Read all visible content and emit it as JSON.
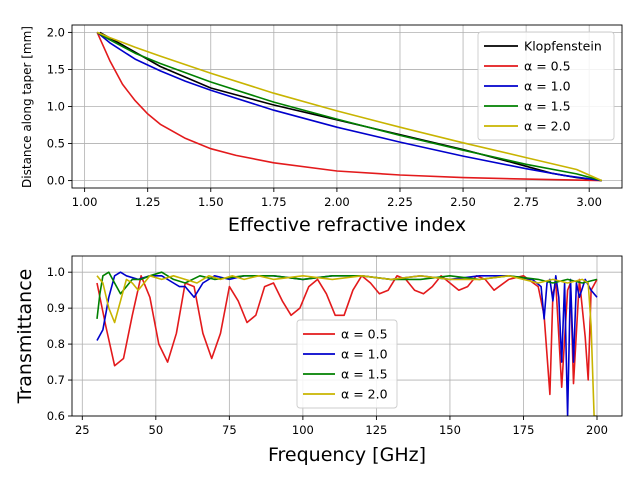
{
  "chart_data": [
    {
      "type": "line",
      "title": "",
      "xlabel": "Effective refractive index",
      "ylabel": "Distance along taper [mm]",
      "xlim": [
        0.95,
        3.13
      ],
      "ylim": [
        -0.1,
        2.1
      ],
      "xticks": [
        "1.00",
        "1.25",
        "1.50",
        "1.75",
        "2.00",
        "2.25",
        "2.50",
        "2.75",
        "3.00"
      ],
      "xtick_values": [
        1.0,
        1.25,
        1.5,
        1.75,
        2.0,
        2.25,
        2.5,
        2.75,
        3.0
      ],
      "yticks": [
        "0.0",
        "0.5",
        "1.0",
        "1.5",
        "2.0"
      ],
      "ytick_values": [
        0.0,
        0.5,
        1.0,
        1.5,
        2.0
      ],
      "grid": true,
      "legend_position": "top-right",
      "series": [
        {
          "name": "Klopfenstein",
          "color": "#000000",
          "x": [
            1.06,
            1.15,
            1.3,
            1.5,
            1.75,
            2.0,
            2.25,
            2.5,
            2.7,
            2.85,
            2.95,
            3.05
          ],
          "y": [
            2.0,
            1.83,
            1.54,
            1.25,
            1.02,
            0.82,
            0.62,
            0.42,
            0.24,
            0.1,
            0.04,
            0.0
          ]
        },
        {
          "name": "α = 0.5",
          "color": "#e31a1c",
          "x": [
            1.05,
            1.1,
            1.15,
            1.2,
            1.25,
            1.3,
            1.4,
            1.5,
            1.6,
            1.75,
            2.0,
            2.25,
            2.5,
            2.75,
            3.05
          ],
          "y": [
            2.0,
            1.62,
            1.3,
            1.08,
            0.9,
            0.76,
            0.57,
            0.43,
            0.34,
            0.24,
            0.13,
            0.075,
            0.04,
            0.02,
            0.0
          ]
        },
        {
          "name": "α = 1.0",
          "color": "#0000cc",
          "x": [
            1.05,
            1.1,
            1.2,
            1.3,
            1.4,
            1.5,
            1.75,
            2.0,
            2.25,
            2.5,
            2.75,
            2.9,
            3.05
          ],
          "y": [
            2.0,
            1.86,
            1.64,
            1.48,
            1.34,
            1.22,
            0.95,
            0.72,
            0.52,
            0.33,
            0.16,
            0.07,
            0.0
          ]
        },
        {
          "name": "α = 1.5",
          "color": "#008000",
          "x": [
            1.05,
            1.1,
            1.2,
            1.3,
            1.5,
            1.75,
            2.0,
            2.25,
            2.5,
            2.75,
            2.95,
            3.05
          ],
          "y": [
            2.0,
            1.9,
            1.72,
            1.58,
            1.33,
            1.06,
            0.83,
            0.61,
            0.41,
            0.22,
            0.09,
            0.0
          ]
        },
        {
          "name": "α = 2.0",
          "color": "#c8b400",
          "x": [
            1.05,
            1.1,
            1.2,
            1.3,
            1.5,
            1.75,
            2.0,
            2.25,
            2.5,
            2.75,
            2.95,
            3.05
          ],
          "y": [
            2.0,
            1.93,
            1.8,
            1.68,
            1.45,
            1.18,
            0.94,
            0.72,
            0.51,
            0.31,
            0.15,
            0.0
          ]
        }
      ]
    },
    {
      "type": "line",
      "title": "",
      "xlabel": "Frequency [GHz]",
      "ylabel": "Transmittance",
      "xlim": [
        21.5,
        208.5
      ],
      "ylim": [
        0.6,
        1.045
      ],
      "xticks": [
        "25",
        "50",
        "75",
        "100",
        "125",
        "150",
        "175",
        "200"
      ],
      "xtick_values": [
        25,
        50,
        75,
        100,
        125,
        150,
        175,
        200
      ],
      "yticks": [
        "0.6",
        "0.7",
        "0.8",
        "0.9",
        "1.0"
      ],
      "ytick_values": [
        0.6,
        0.7,
        0.8,
        0.9,
        1.0
      ],
      "grid": true,
      "legend_position": "lower-center",
      "series": [
        {
          "name": "α = 0.5",
          "color": "#e31a1c",
          "x": [
            30,
            33,
            36,
            39,
            42,
            45,
            48,
            51,
            54,
            57,
            60,
            63,
            66,
            69,
            72,
            75,
            78,
            81,
            84,
            87,
            90,
            93,
            96,
            99,
            102,
            105,
            108,
            111,
            114,
            117,
            120,
            123,
            126,
            129,
            132,
            135,
            138,
            141,
            144,
            147,
            150,
            153,
            156,
            159,
            162,
            165,
            170,
            175,
            180,
            182,
            184,
            185,
            186,
            188,
            190,
            191,
            192,
            194,
            196,
            197,
            198,
            200
          ],
          "y": [
            0.97,
            0.85,
            0.74,
            0.76,
            0.88,
            0.99,
            0.93,
            0.8,
            0.75,
            0.83,
            0.97,
            0.96,
            0.83,
            0.76,
            0.83,
            0.96,
            0.92,
            0.86,
            0.88,
            0.96,
            0.97,
            0.92,
            0.88,
            0.9,
            0.96,
            0.98,
            0.94,
            0.88,
            0.88,
            0.95,
            0.99,
            0.97,
            0.94,
            0.95,
            0.99,
            0.98,
            0.95,
            0.94,
            0.96,
            0.99,
            0.97,
            0.95,
            0.96,
            0.99,
            0.98,
            0.95,
            0.98,
            0.99,
            0.96,
            0.88,
            0.66,
            0.94,
            0.97,
            0.68,
            0.95,
            0.97,
            0.69,
            0.98,
            0.82,
            0.7,
            0.95,
            0.98
          ]
        },
        {
          "name": "α = 1.0",
          "color": "#0000cc",
          "x": [
            30,
            32,
            34,
            36,
            38,
            40,
            44,
            48,
            52,
            56,
            58,
            60,
            63,
            66,
            70,
            75,
            80,
            90,
            100,
            110,
            120,
            130,
            140,
            150,
            160,
            170,
            178,
            181,
            182,
            183,
            184,
            185,
            186,
            187,
            188,
            189,
            190,
            191,
            192,
            193,
            194,
            196,
            198,
            200
          ],
          "y": [
            0.81,
            0.84,
            0.93,
            0.99,
            1.0,
            0.99,
            0.98,
            0.99,
            0.99,
            0.97,
            0.96,
            0.96,
            0.93,
            0.97,
            0.99,
            0.98,
            0.99,
            0.99,
            0.98,
            0.99,
            0.99,
            0.98,
            0.99,
            0.98,
            0.99,
            0.99,
            0.98,
            0.96,
            0.87,
            0.97,
            0.98,
            0.92,
            0.99,
            0.93,
            0.75,
            0.97,
            0.6,
            0.98,
            0.75,
            0.97,
            0.93,
            0.98,
            0.95,
            0.93
          ]
        },
        {
          "name": "α = 1.5",
          "color": "#008000",
          "x": [
            30,
            31,
            32,
            34,
            36,
            38,
            40,
            42,
            45,
            48,
            52,
            56,
            60,
            65,
            70,
            80,
            90,
            100,
            110,
            120,
            130,
            140,
            150,
            160,
            170,
            180,
            185,
            190,
            195,
            200
          ],
          "y": [
            0.87,
            0.94,
            0.99,
            1.0,
            0.97,
            0.94,
            0.96,
            0.98,
            0.98,
            0.99,
            1.0,
            0.98,
            0.97,
            0.99,
            0.98,
            0.99,
            0.99,
            0.98,
            0.99,
            0.99,
            0.98,
            0.98,
            0.99,
            0.98,
            0.99,
            0.98,
            0.97,
            0.98,
            0.97,
            0.98
          ]
        },
        {
          "name": "α = 2.0",
          "color": "#c8b400",
          "x": [
            30,
            32,
            34,
            36,
            38,
            40,
            42,
            44,
            46,
            48,
            52,
            56,
            60,
            64,
            68,
            72,
            76,
            80,
            85,
            90,
            100,
            110,
            120,
            130,
            140,
            150,
            160,
            170,
            180,
            185,
            190,
            195,
            197,
            198,
            199,
            200
          ],
          "y": [
            0.99,
            0.97,
            0.9,
            0.86,
            0.92,
            0.98,
            0.97,
            0.95,
            0.97,
            0.99,
            0.98,
            0.99,
            0.98,
            0.97,
            0.99,
            0.98,
            0.99,
            0.98,
            0.99,
            0.98,
            0.99,
            0.98,
            0.99,
            0.98,
            0.99,
            0.98,
            0.98,
            0.99,
            0.97,
            0.98,
            0.97,
            0.98,
            0.97,
            0.85,
            0.6,
            0.6
          ]
        }
      ]
    }
  ]
}
